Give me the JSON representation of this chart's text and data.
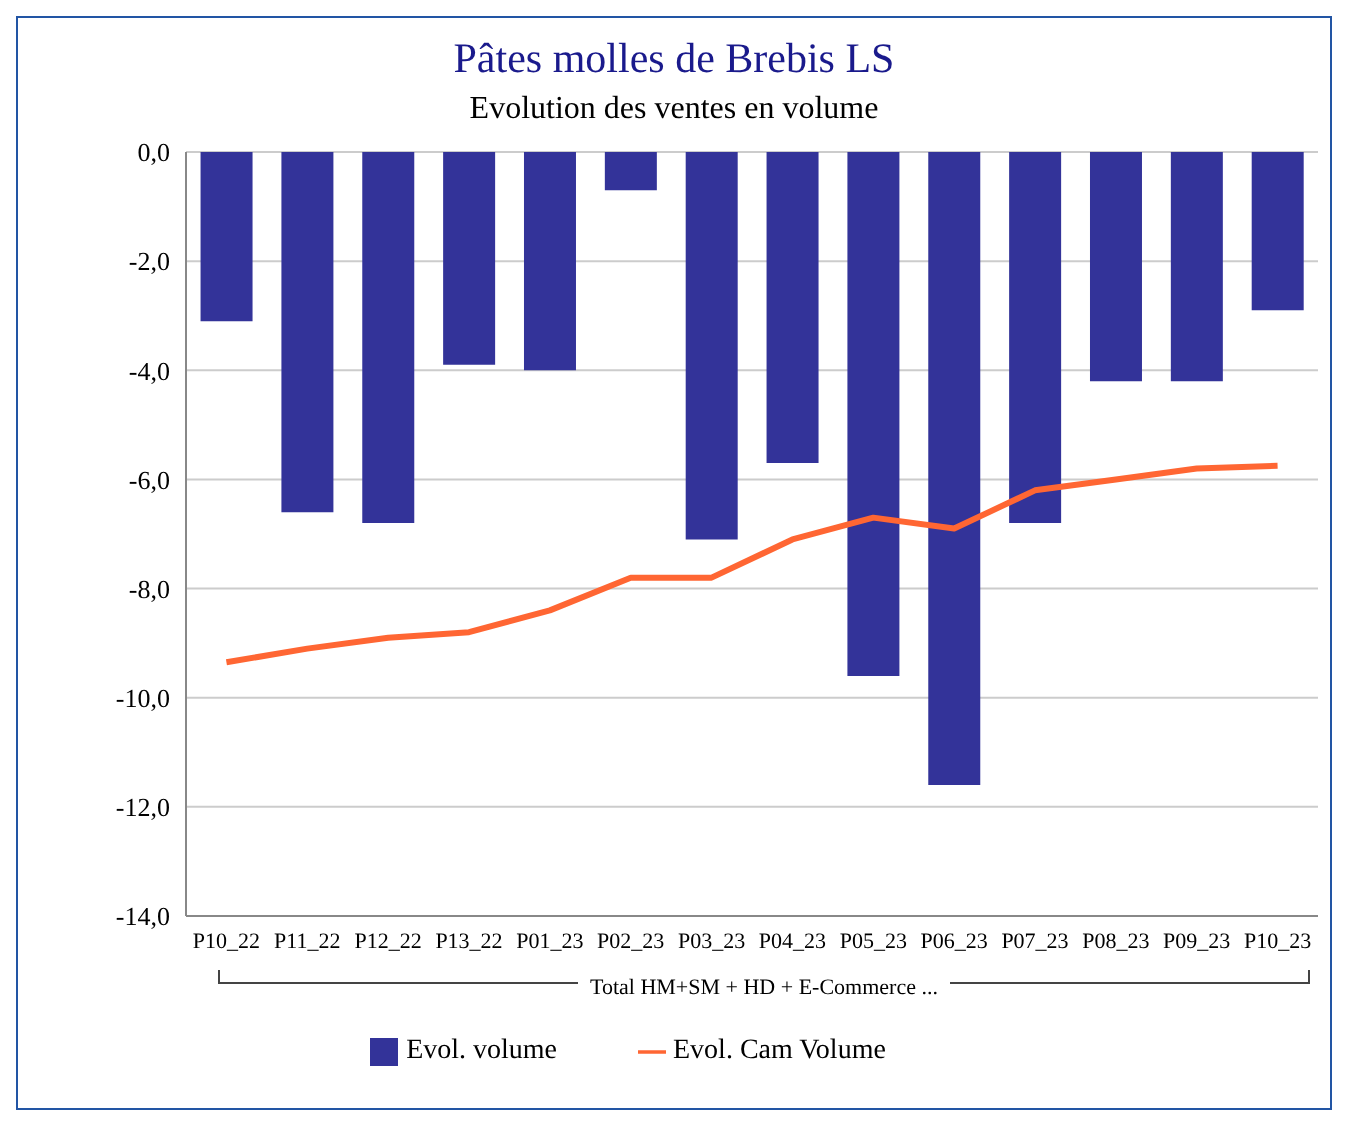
{
  "chart_data": {
    "type": "bar",
    "title": "Pâtes molles de Brebis LS",
    "subtitle": "Evolution des ventes en volume",
    "categories": [
      "P10_22",
      "P11_22",
      "P12_22",
      "P13_22",
      "P01_23",
      "P02_23",
      "P03_23",
      "P04_23",
      "P05_23",
      "P06_23",
      "P07_23",
      "P08_23",
      "P09_23",
      "P10_23"
    ],
    "series": [
      {
        "name": "Evol. volume",
        "color": "#333399",
        "values": [
          -3.1,
          -6.6,
          -6.8,
          -3.9,
          -4.0,
          -0.7,
          -7.1,
          -5.7,
          -9.6,
          -11.6,
          -6.8,
          -4.2,
          -4.2,
          -2.9
        ]
      },
      {
        "name": "Evol. Cam Volume",
        "type": "line",
        "color": "#ff6633",
        "values": [
          -9.35,
          -9.1,
          -8.9,
          -8.8,
          -8.4,
          -7.8,
          -7.8,
          -7.1,
          -6.7,
          -6.9,
          -6.2,
          -6.0,
          -5.8,
          -5.75
        ]
      }
    ],
    "ylim": [
      -14,
      0
    ],
    "yticks": [
      {
        "value": -14,
        "label": "-14,0"
      },
      {
        "value": -12,
        "label": "-12,0"
      },
      {
        "value": -10,
        "label": "-10,0"
      },
      {
        "value": -8,
        "label": "-8,0"
      },
      {
        "value": -6,
        "label": "-6,0"
      },
      {
        "value": -4,
        "label": "-4,0"
      },
      {
        "value": -2,
        "label": "-2,0"
      },
      {
        "value": 0,
        "label": "0,0"
      }
    ],
    "grid": "y",
    "legend": "bottom",
    "marker": "none",
    "line_style": "solid",
    "annotations": [
      "Total HM+SM + HD + E-Commerce ..."
    ]
  }
}
